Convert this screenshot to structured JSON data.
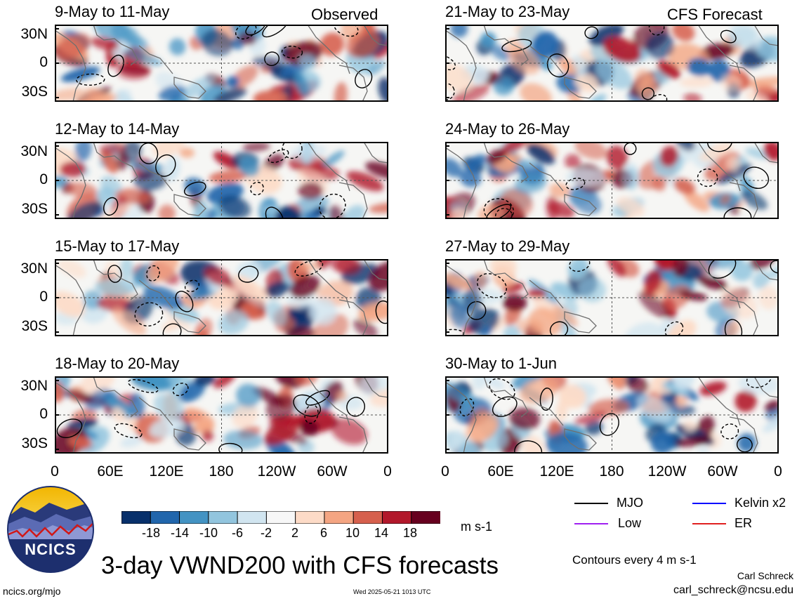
{
  "figure": {
    "main_title": "3-day VWND200 with CFS forecasts",
    "observed_label": "Observed",
    "forecast_label": "CFS Forecast",
    "units": "m s-1",
    "contour_note": "Contours every 4 m s-1",
    "author": "Carl Schreck",
    "email": "carl_schreck@ncsu.edu",
    "url": "ncics.org/mjo",
    "timestamp": "Wed 2025-05-21 1013 UTC",
    "logo_text": "NCICS"
  },
  "chart_data": {
    "type": "heatmap",
    "variable": "VWND200",
    "lat_ticks": [
      "30N",
      "0",
      "30S"
    ],
    "lon_ticks": [
      "0",
      "60E",
      "120E",
      "180",
      "120W",
      "60W",
      "0"
    ],
    "colorbar": {
      "labels": [
        "-18",
        "-14",
        "-10",
        "-6",
        "-2",
        "2",
        "6",
        "10",
        "14",
        "18"
      ],
      "colors": [
        "#08306b",
        "#2166ac",
        "#4393c3",
        "#92c5de",
        "#d1e5f0",
        "#f7f7f7",
        "#fddbc7",
        "#f4a582",
        "#d6604d",
        "#b2182b",
        "#67001f"
      ]
    },
    "legend": [
      {
        "label": "MJO",
        "color": "#000000"
      },
      {
        "label": "Kelvin x2",
        "color": "#0000ff"
      },
      {
        "label": "Low",
        "color": "#a020f0"
      },
      {
        "label": "ER",
        "color": "#e02020"
      }
    ],
    "panels": [
      {
        "period": "9-May to 11-May",
        "source": "Observed"
      },
      {
        "period": "12-May to 14-May",
        "source": "Observed"
      },
      {
        "period": "15-May to 17-May",
        "source": "Observed"
      },
      {
        "period": "18-May to 20-May",
        "source": "Observed"
      },
      {
        "period": "21-May to 23-May",
        "source": "CFS Forecast"
      },
      {
        "period": "24-May to 26-May",
        "source": "CFS Forecast"
      },
      {
        "period": "27-May to 29-May",
        "source": "CFS Forecast"
      },
      {
        "period": "30-May to 1-Jun",
        "source": "CFS Forecast"
      }
    ]
  }
}
